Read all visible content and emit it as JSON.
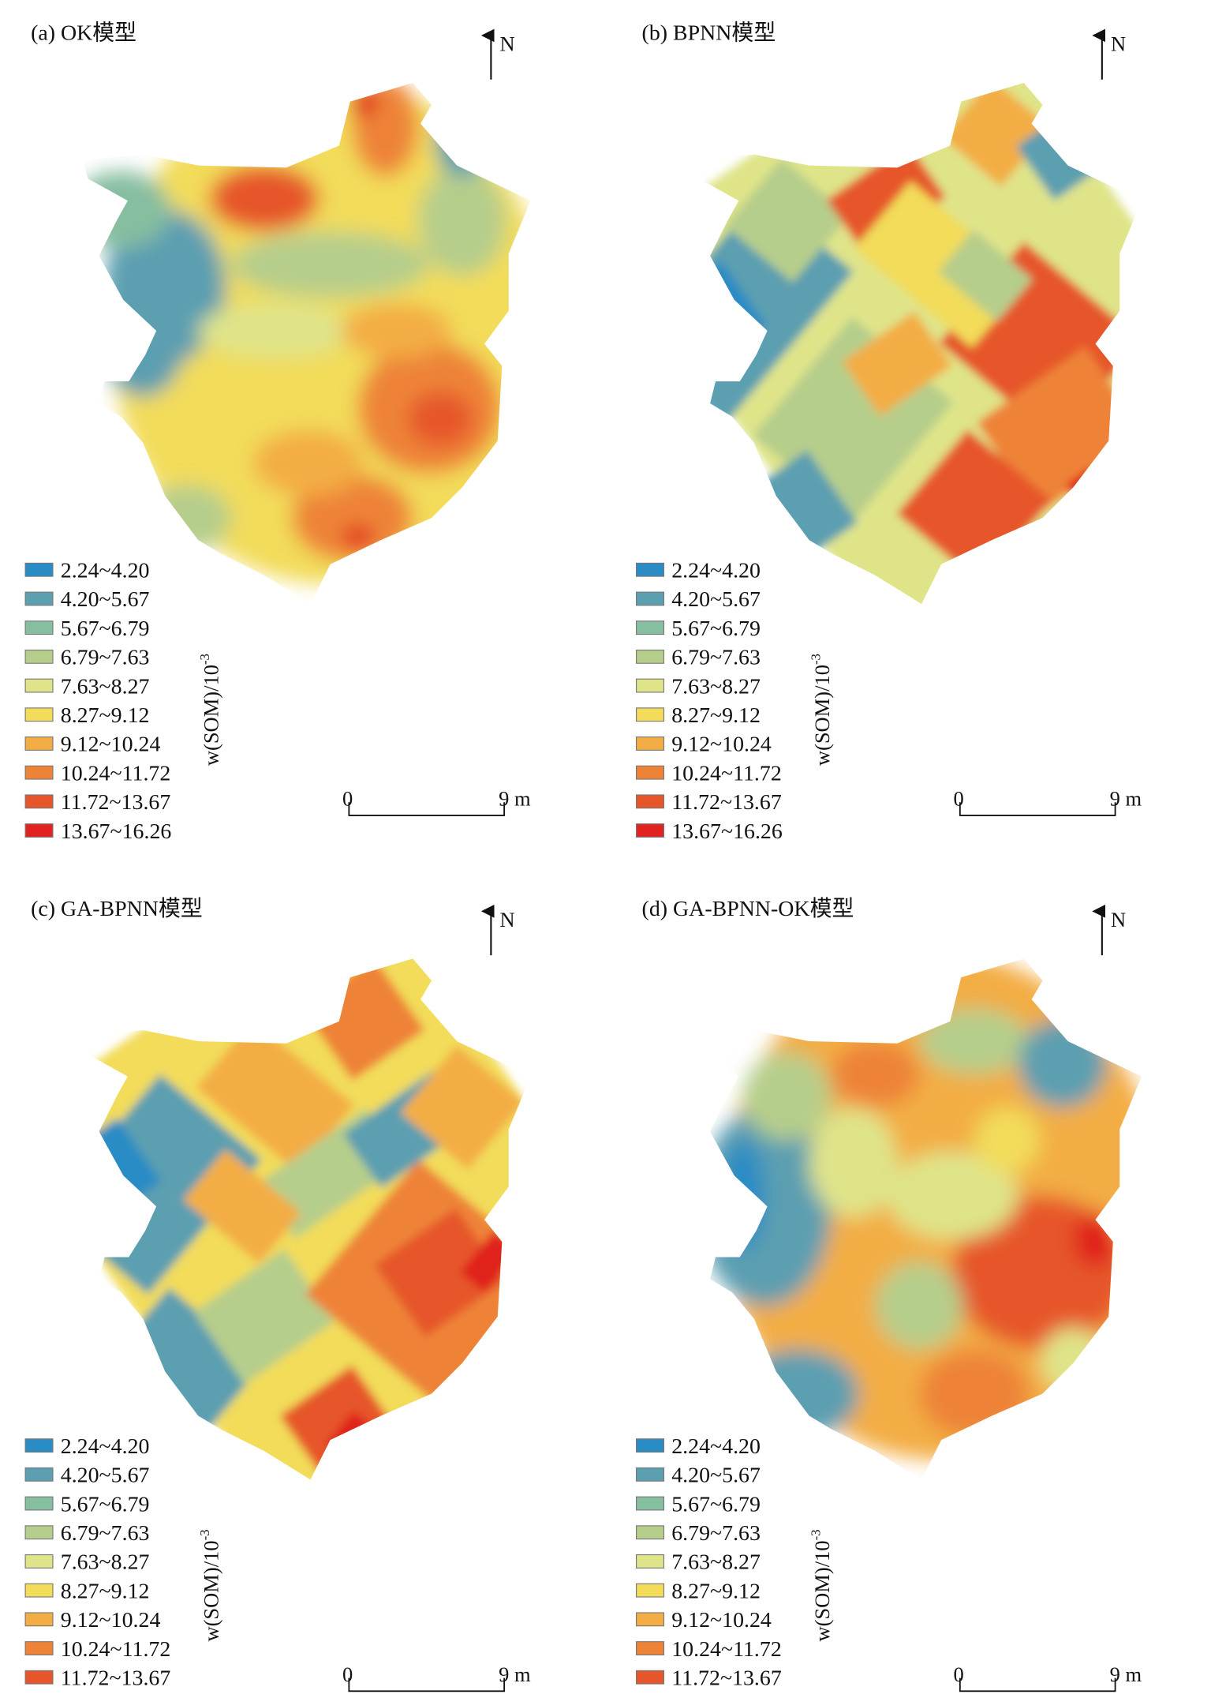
{
  "legend": {
    "title": "w(SOM)/10-3",
    "title_main": "w(SOM)/10",
    "title_exp": "-3",
    "classes": [
      {
        "label": "2.24~4.20",
        "color": "#2a8cc4"
      },
      {
        "label": "4.20~5.67",
        "color": "#5b9fb1"
      },
      {
        "label": "5.67~6.79",
        "color": "#86bea0"
      },
      {
        "label": "6.79~7.63",
        "color": "#b6ce8b"
      },
      {
        "label": "7.63~8.27",
        "color": "#dfe489"
      },
      {
        "label": "8.27~9.12",
        "color": "#f2dc5a"
      },
      {
        "label": "9.12~10.24",
        "color": "#f3ad45"
      },
      {
        "label": "10.24~11.72",
        "color": "#ee8338"
      },
      {
        "label": "11.72~13.67",
        "color": "#e6562a"
      },
      {
        "label": "13.67~16.26",
        "color": "#e0231f"
      }
    ]
  },
  "panels": [
    {
      "label": "(a) OK模型",
      "north": "N",
      "scale_start": "0",
      "scale_end": "9 m"
    },
    {
      "label": "(b) BPNN模型",
      "north": "N",
      "scale_start": "0",
      "scale_end": "9 m"
    },
    {
      "label": "(c) GA-BPNN模型",
      "north": "N",
      "scale_start": "0",
      "scale_end": "9 m"
    },
    {
      "label": "(d) GA-BPNN-OK模型",
      "north": "N",
      "scale_start": "0",
      "scale_end": "9 m"
    }
  ]
}
